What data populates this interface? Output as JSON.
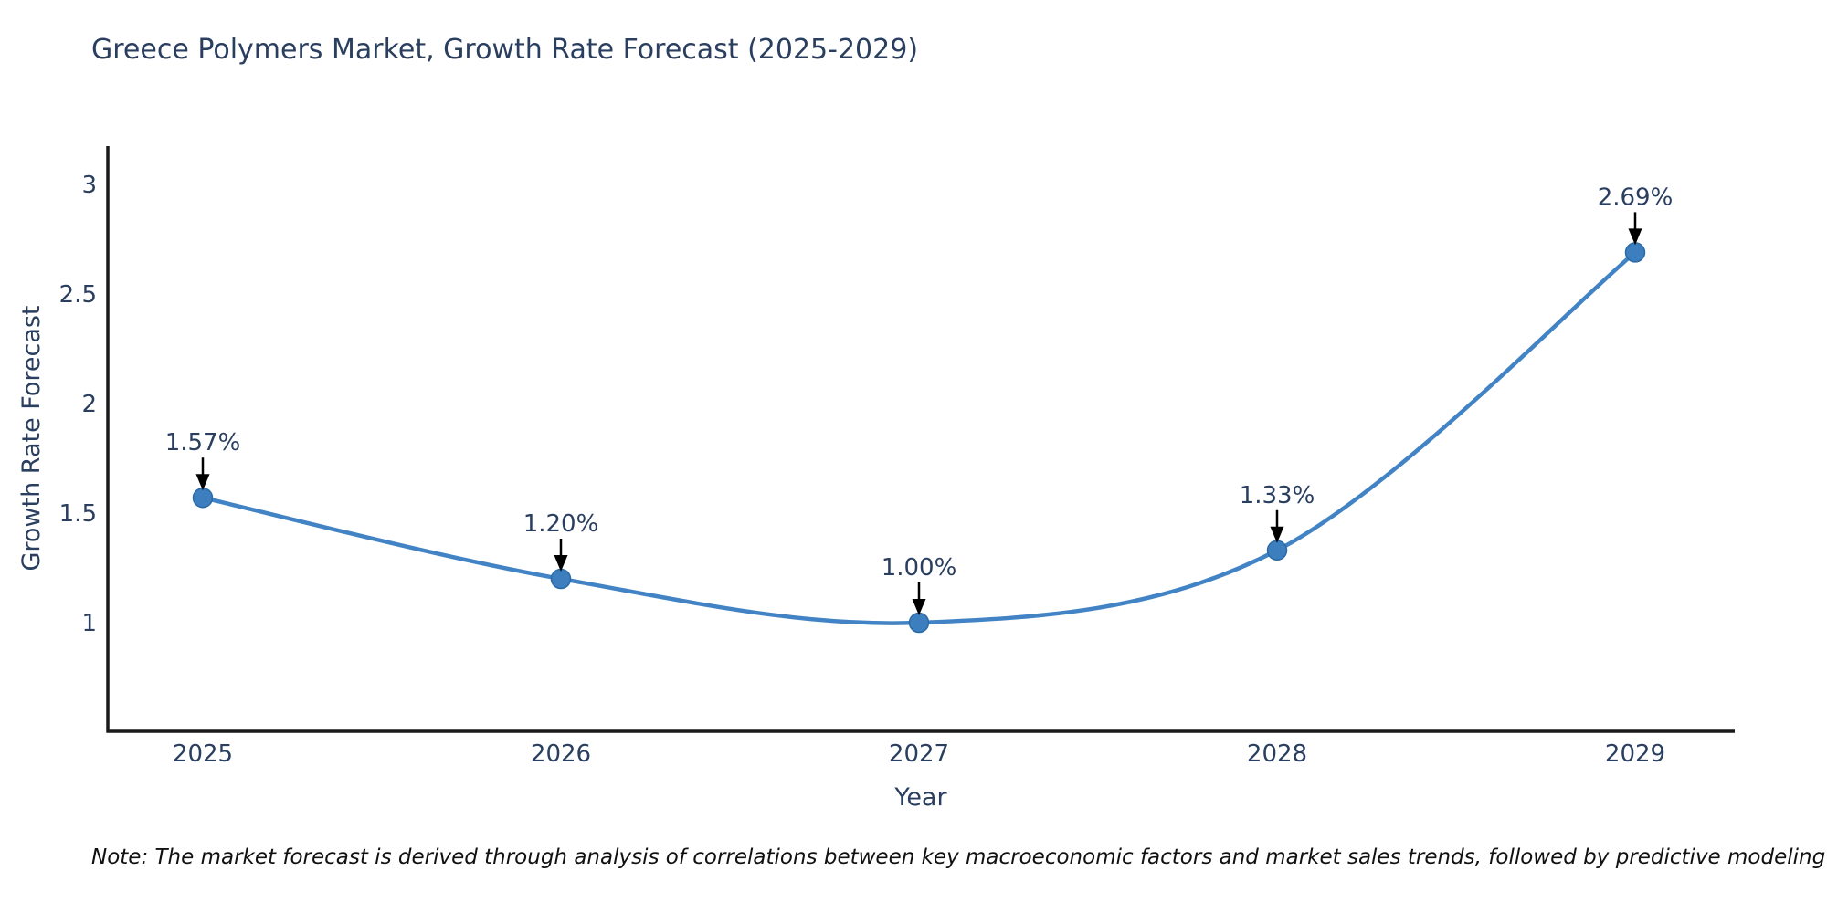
{
  "header": {
    "title": "Greece Polymers Market, Growth Rate Forecast (2025-2029)"
  },
  "chart_data": {
    "type": "line",
    "title": "Greece Polymers Market, Growth Rate Forecast (2025-2029)",
    "categories": [
      "2025",
      "2026",
      "2027",
      "2028",
      "2029"
    ],
    "x": [
      2025,
      2026,
      2027,
      2028,
      2029
    ],
    "series": [
      {
        "name": "Growth Rate Forecast",
        "values": [
          1.57,
          1.2,
          1.0,
          1.33,
          2.69
        ]
      }
    ],
    "point_labels": [
      "1.57%",
      "1.20%",
      "1.00%",
      "1.33%",
      "2.69%"
    ],
    "xlabel": "Year",
    "ylabel": "Growth Rate Forecast",
    "y_ticks": [
      1,
      1.5,
      2,
      2.5,
      3
    ],
    "ylim": [
      0.5,
      3.17
    ],
    "line_shape": "spline",
    "grid": false,
    "legend_position": "none",
    "annotation_style": "black-down-arrow-to-point",
    "colors": {
      "line": "#4183c4",
      "marker": "#3d7ebf",
      "marker_edge": "#2a6aa5",
      "axis": "#1a1a1a",
      "text": "#2a3f5f",
      "annotation_text": "#2a3f5f",
      "annotation_arrow": "#000000",
      "background": "#ffffff"
    }
  },
  "footer": {
    "note": "Note: The market forecast is derived through analysis of correlations between key macroeconomic factors and market sales trends, followed by predictive modeling to project future sales"
  }
}
